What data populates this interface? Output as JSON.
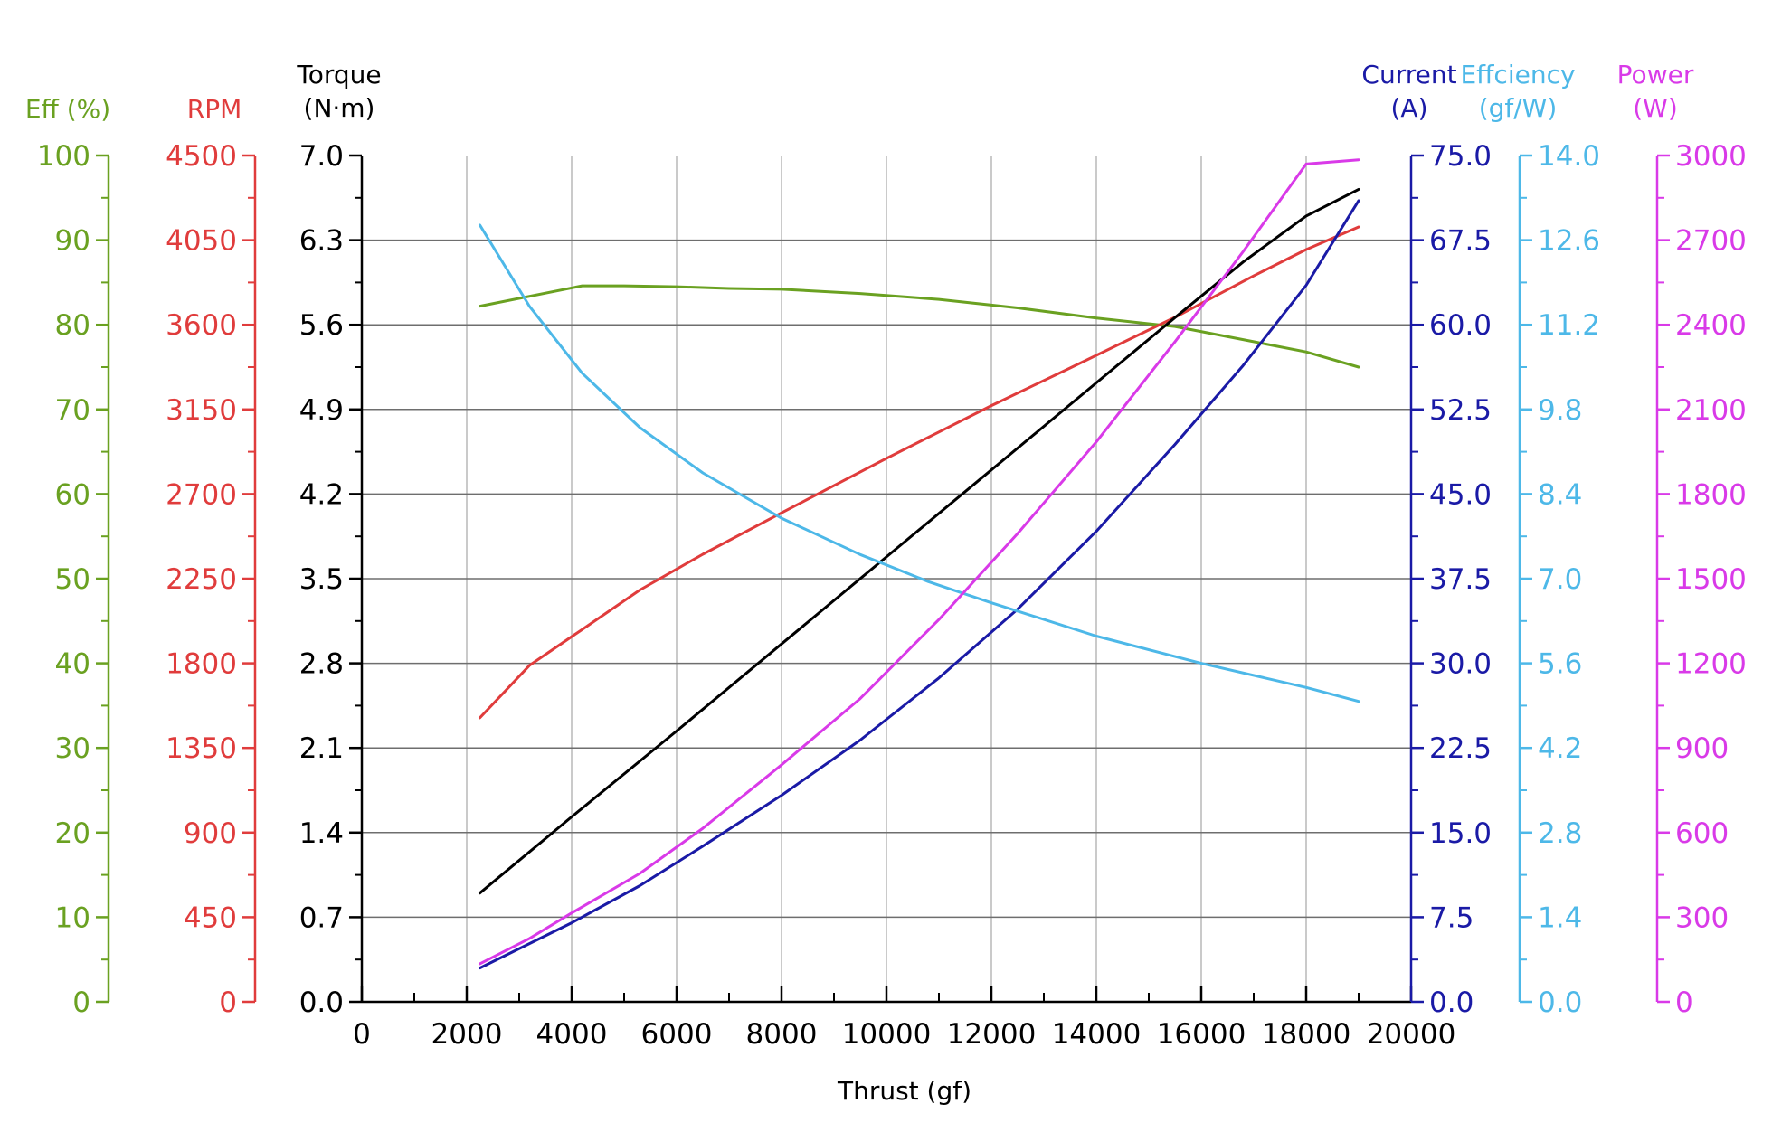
{
  "chart_data": {
    "type": "line",
    "xlabel": "Thrust (gf)",
    "xlim": [
      0,
      20000
    ],
    "xticks": [
      "0",
      "2000",
      "4000",
      "6000",
      "8000",
      "10000",
      "12000",
      "14000",
      "16000",
      "18000",
      "20000"
    ],
    "grid": true,
    "axes": [
      {
        "id": "eff_pct",
        "side": "left",
        "title": [
          "Eff (%)"
        ],
        "color": "#6aa121",
        "ylim": [
          0,
          100
        ],
        "ticks": [
          "0",
          "10",
          "20",
          "30",
          "40",
          "50",
          "60",
          "70",
          "80",
          "90",
          "100"
        ]
      },
      {
        "id": "rpm",
        "side": "left",
        "title": [
          "RPM"
        ],
        "color": "#e03c3c",
        "ylim": [
          0,
          4500
        ],
        "ticks": [
          "0",
          "450",
          "900",
          "1350",
          "1800",
          "2250",
          "2700",
          "3150",
          "3600",
          "4050",
          "4500"
        ]
      },
      {
        "id": "torque",
        "side": "left",
        "title": [
          "Torque",
          "(N·m)"
        ],
        "color": "#000000",
        "ylim": [
          0,
          7
        ],
        "ticks": [
          "0.0",
          "0.7",
          "1.4",
          "2.1",
          "2.8",
          "3.5",
          "4.2",
          "4.9",
          "5.6",
          "6.3",
          "7.0"
        ]
      },
      {
        "id": "current",
        "side": "right",
        "title": [
          "Current",
          "(A)"
        ],
        "color": "#1a1aa6",
        "ylim": [
          0,
          75
        ],
        "ticks": [
          "0.0",
          "7.5",
          "15.0",
          "22.5",
          "30.0",
          "37.5",
          "45.0",
          "52.5",
          "60.0",
          "67.5",
          "75.0"
        ]
      },
      {
        "id": "efficiency",
        "side": "right",
        "title": [
          "Effciency",
          "(gf/W)"
        ],
        "color": "#4db8e8",
        "ylim": [
          0,
          14
        ],
        "ticks": [
          "0.0",
          "1.4",
          "2.8",
          "4.2",
          "5.6",
          "7.0",
          "8.4",
          "9.8",
          "11.2",
          "12.6",
          "14.0"
        ]
      },
      {
        "id": "power",
        "side": "right",
        "title": [
          "Power",
          "(W)"
        ],
        "color": "#d93ae8",
        "ylim": [
          0,
          3000
        ],
        "ticks": [
          "0",
          "300",
          "600",
          "900",
          "1200",
          "1500",
          "1800",
          "2100",
          "2400",
          "2700",
          "3000"
        ]
      }
    ],
    "series": [
      {
        "axis": "eff_pct",
        "color": "#6aa121",
        "x": [
          2250,
          4200,
          5000,
          6000,
          7000,
          8000,
          9500,
          11000,
          12500,
          14000,
          15500,
          17000,
          18000,
          19000
        ],
        "y": [
          82.2,
          84.6,
          84.6,
          84.5,
          84.3,
          84.2,
          83.7,
          83.0,
          82.0,
          80.8,
          79.8,
          78.0,
          76.8,
          75.0
        ]
      },
      {
        "axis": "rpm",
        "color": "#e03c3c",
        "x": [
          2250,
          3200,
          4200,
          5300,
          6500,
          8000,
          10000,
          11000,
          12000,
          13500,
          15500,
          17000,
          18000,
          19000
        ],
        "y": [
          1510,
          1790,
          1980,
          2190,
          2380,
          2600,
          2890,
          3030,
          3170,
          3370,
          3640,
          3860,
          4000,
          4120
        ]
      },
      {
        "axis": "torque",
        "color": "#000000",
        "x": [
          2250,
          4000,
          6000,
          8000,
          10000,
          12000,
          14000,
          15500,
          16800,
          18000,
          19000
        ],
        "y": [
          0.9,
          1.53,
          2.24,
          2.96,
          3.68,
          4.4,
          5.12,
          5.66,
          6.12,
          6.5,
          6.72
        ]
      },
      {
        "axis": "current",
        "color": "#1a1aa6",
        "x": [
          2250,
          4000,
          5300,
          6500,
          8000,
          9500,
          11000,
          12500,
          14000,
          15500,
          16800,
          18000,
          19000
        ],
        "y": [
          3.0,
          7.0,
          10.3,
          13.8,
          18.3,
          23.2,
          28.7,
          34.8,
          41.7,
          49.4,
          56.4,
          63.5,
          71.0
        ]
      },
      {
        "axis": "efficiency",
        "color": "#4db8e8",
        "x": [
          2250,
          3200,
          4200,
          5300,
          6500,
          8000,
          9500,
          10800,
          12000,
          14000,
          16000,
          18000,
          19000
        ],
        "y": [
          12.85,
          11.5,
          10.4,
          9.5,
          8.75,
          8.0,
          7.4,
          6.95,
          6.6,
          6.05,
          5.6,
          5.2,
          4.97
        ]
      },
      {
        "axis": "power",
        "color": "#d93ae8",
        "x": [
          2250,
          3200,
          4000,
          5300,
          6500,
          8000,
          9500,
          11000,
          12500,
          14000,
          15500,
          16800,
          18000,
          19000
        ],
        "y": [
          135,
          225,
          315,
          455,
          615,
          840,
          1075,
          1355,
          1660,
          1985,
          2340,
          2660,
          2970,
          2985
        ]
      }
    ]
  }
}
